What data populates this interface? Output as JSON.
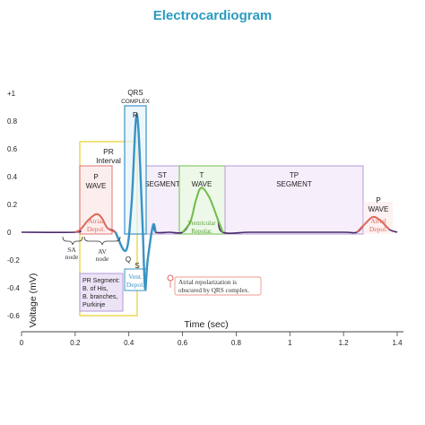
{
  "title": "Electrocardiogram",
  "axes": {
    "xlabel": "Time (sec)",
    "ylabel": "Voltage (mV)",
    "xticks": [
      "0",
      "0.2",
      "0.4",
      "0.6",
      "0.8",
      "1",
      "1.2",
      "1.4"
    ],
    "yticks": [
      "+1",
      "0.8",
      "0.6",
      "0.4",
      "0.2",
      "0",
      "-0.2",
      "-0.4",
      "-0.6"
    ]
  },
  "labels": {
    "qrs_complex": [
      "QRS",
      "COMPLEX"
    ],
    "r": "R",
    "q": "Q",
    "s": "S",
    "pr_interval": [
      "PR",
      "Interval"
    ],
    "p_wave": [
      "P",
      "WAVE"
    ],
    "atrial_depol": [
      "Atrial",
      "Depol."
    ],
    "st_segment": [
      "ST",
      "SEGMENT"
    ],
    "t_wave": [
      "T",
      "WAVE"
    ],
    "ventricular_repolar": [
      "Ventricular",
      "Repolar."
    ],
    "tp_segment": [
      "TP",
      "SEGMENT"
    ],
    "p_wave_2": [
      "P",
      "WAVE"
    ],
    "atrial_depol_2": [
      "Atrial",
      "Depol."
    ],
    "sa_node": [
      "SA",
      "node"
    ],
    "av_node": [
      "AV",
      "node"
    ],
    "vent_depol": [
      "Vent.",
      "Depol."
    ],
    "pr_segment": [
      "PR Segment:",
      "B. of His,",
      "B. branches,",
      "Purkinje"
    ],
    "atrial_note": [
      "Atrial repolarization is",
      "obscured by QRS complex."
    ]
  },
  "colors": {
    "title": "#2a9bc0",
    "trace": "#4a2a6a",
    "qrs_trace": "#3a93c4",
    "p_wave": "#e06a5e",
    "t_wave": "#6fbf4a",
    "pr_interval": "#e8d23a",
    "qrs_box": "#3a93c4",
    "segment": "#b39ad8",
    "p_box": "#e57373"
  },
  "chart_data": {
    "type": "line",
    "xlim": [
      0,
      1.4
    ],
    "ylim": [
      -0.6,
      1.0
    ],
    "x": [
      0,
      0.2,
      0.22,
      0.25,
      0.28,
      0.3,
      0.32,
      0.35,
      0.39,
      0.41,
      0.43,
      0.45,
      0.46,
      0.47,
      0.49,
      0.5,
      0.55,
      0.6,
      0.63,
      0.65,
      0.67,
      0.7,
      0.73,
      0.75,
      0.85,
      1.0,
      1.2,
      1.25,
      1.28,
      1.31,
      1.34,
      1.37,
      1.4
    ],
    "y": [
      0,
      0,
      0.02,
      0.09,
      0.13,
      0.1,
      0.03,
      0,
      -0.13,
      0.2,
      0.85,
      0.1,
      -0.4,
      -0.2,
      0.05,
      0,
      0,
      0,
      0.08,
      0.23,
      0.32,
      0.25,
      0.1,
      0,
      0,
      0,
      0,
      0,
      0.06,
      0.11,
      0.08,
      0.02,
      0
    ]
  }
}
